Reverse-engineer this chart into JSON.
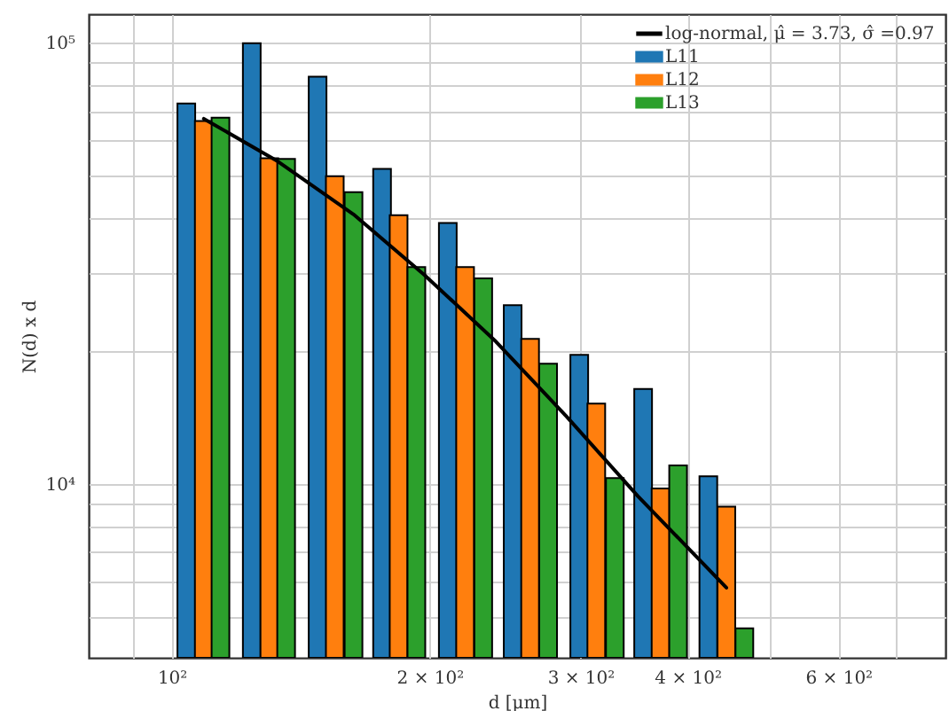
{
  "chart_data": {
    "type": "bar",
    "xlabel": "d [μm]",
    "ylabel": "N(d) x d",
    "log": "xy",
    "grid": true,
    "legend": "top right",
    "xlim": [
      80,
      800
    ],
    "xticks": [
      {
        "value": 90,
        "label": null
      },
      {
        "value": 100,
        "label": "10²"
      },
      {
        "value": 200,
        "label": "2 × 10²"
      },
      {
        "value": 300,
        "label": "3 × 10²"
      },
      {
        "value": 400,
        "label": "4 × 10²"
      },
      {
        "value": 500,
        "label": null
      },
      {
        "value": 600,
        "label": "6 × 10²"
      },
      {
        "value": 700,
        "label": null
      }
    ],
    "ylim": [
      4030,
      116000
    ],
    "yticks": [
      {
        "value": 5000,
        "label": null
      },
      {
        "value": 6000,
        "label": null
      },
      {
        "value": 7000,
        "label": null
      },
      {
        "value": 8000,
        "label": null
      },
      {
        "value": 9000,
        "label": null
      },
      {
        "value": 10000,
        "label": "10⁴"
      },
      {
        "value": 20000,
        "label": null
      },
      {
        "value": 30000,
        "label": null
      },
      {
        "value": 40000,
        "label": null
      },
      {
        "value": 50000,
        "label": null
      },
      {
        "value": 60000,
        "label": null
      },
      {
        "value": 70000,
        "label": null
      },
      {
        "value": 80000,
        "label": null
      },
      {
        "value": 90000,
        "label": null
      },
      {
        "value": 100000,
        "label": "10⁵"
      }
    ],
    "series": [
      {
        "name": "log-normal, μ̂ = 3.73, σ̂ =0.97",
        "type": "line",
        "color": "#000000",
        "x": [
          109,
          133,
          163,
          197,
          239,
          289,
          350,
          444
        ],
        "values": [
          67200,
          53800,
          40800,
          29800,
          21000,
          14200,
          9370,
          5810
        ]
      },
      {
        "name": "L11",
        "color": "#1f77b4",
        "x": [
          104,
          124,
          148,
          176,
          210,
          250,
          299,
          355,
          423
        ],
        "values": [
          72800,
          99700,
          83700,
          51700,
          39000,
          25400,
          19600,
          16400,
          10400
        ]
      },
      {
        "name": "L12",
        "color": "#ff7f0e",
        "x": [
          109,
          130,
          155,
          184,
          220,
          262,
          313,
          372,
          444
        ],
        "values": [
          66400,
          54700,
          49800,
          40600,
          31000,
          21300,
          15200,
          9750,
          8870
        ]
      },
      {
        "name": "L13",
        "color": "#2ca02c",
        "x": [
          114,
          136,
          163,
          193,
          231,
          275,
          329,
          390,
          466
        ],
        "values": [
          67600,
          54500,
          45800,
          31000,
          29200,
          18700,
          10300,
          11000,
          4700
        ]
      }
    ]
  }
}
